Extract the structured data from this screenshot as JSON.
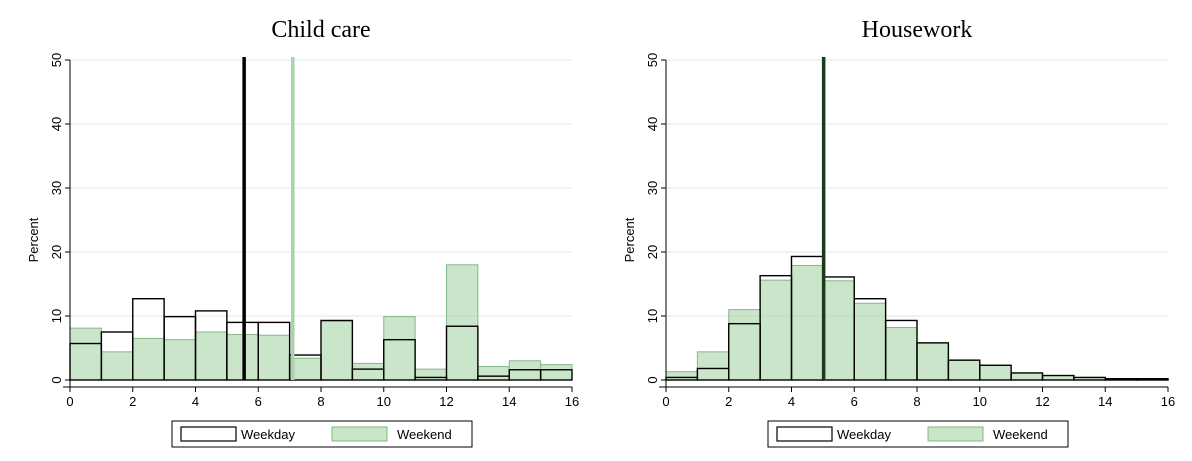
{
  "colors": {
    "weekday_stroke": "#000000",
    "weekend_fill": "#a9d4a9",
    "weekend_stroke": "#84b884",
    "grid": "#e6e6e6",
    "mean_weekday": "#000000",
    "mean_weekend": "#a9d4a9",
    "mean_overlap": "#1a3a1a"
  },
  "chart_data": [
    {
      "type": "histogram",
      "title": "Child care",
      "ylabel": "Percent",
      "xlabel": "",
      "xlim": [
        0,
        16
      ],
      "ylim": [
        0,
        50
      ],
      "xticks": [
        "0",
        "2",
        "4",
        "6",
        "8",
        "10",
        "12",
        "14",
        "16"
      ],
      "yticks": [
        "0",
        "10",
        "20",
        "30",
        "40",
        "50"
      ],
      "grid": true,
      "legend_position": "bottom",
      "bin_width": 1,
      "bin_starts": [
        0,
        1,
        2,
        3,
        4,
        5,
        6,
        7,
        8,
        9,
        10,
        11,
        12,
        13,
        14,
        15
      ],
      "series": [
        {
          "name": "Weekday",
          "style": "outline",
          "values": [
            5.7,
            7.5,
            12.7,
            9.9,
            10.8,
            9.0,
            9.0,
            3.9,
            9.3,
            1.7,
            6.3,
            0.4,
            8.4,
            0.6,
            1.6,
            1.6
          ]
        },
        {
          "name": "Weekend",
          "style": "filled",
          "values": [
            8.1,
            4.4,
            6.5,
            6.3,
            7.5,
            7.1,
            7.0,
            3.4,
            9.2,
            2.6,
            9.9,
            1.7,
            18.0,
            2.1,
            3.0,
            2.4
          ]
        }
      ],
      "mean_lines": [
        {
          "series": "Weekday",
          "x": 5.55
        },
        {
          "series": "Weekend",
          "x": 7.1
        }
      ]
    },
    {
      "type": "histogram",
      "title": "Housework",
      "ylabel": "Percent",
      "xlabel": "",
      "xlim": [
        0,
        16
      ],
      "ylim": [
        0,
        50
      ],
      "xticks": [
        "0",
        "2",
        "4",
        "6",
        "8",
        "10",
        "12",
        "14",
        "16"
      ],
      "yticks": [
        "0",
        "10",
        "20",
        "30",
        "40",
        "50"
      ],
      "grid": true,
      "legend_position": "bottom",
      "bin_width": 1,
      "bin_starts": [
        0,
        1,
        2,
        3,
        4,
        5,
        6,
        7,
        8,
        9,
        10,
        11,
        12,
        13,
        14,
        15
      ],
      "series": [
        {
          "name": "Weekday",
          "style": "outline",
          "values": [
            0.4,
            1.8,
            8.8,
            16.3,
            19.3,
            16.1,
            12.7,
            9.3,
            5.8,
            3.1,
            2.3,
            1.1,
            0.7,
            0.4,
            0.2,
            0.2
          ]
        },
        {
          "name": "Weekend",
          "style": "filled",
          "values": [
            1.3,
            4.4,
            11.0,
            15.6,
            17.9,
            15.5,
            12.0,
            8.2,
            5.8,
            3.1,
            2.3,
            1.1,
            0.7,
            0.4,
            0.2,
            0.2
          ]
        }
      ],
      "mean_lines": [
        {
          "series": "Weekday",
          "x": 5.0
        },
        {
          "series": "Weekend",
          "x": 5.05
        }
      ]
    }
  ]
}
